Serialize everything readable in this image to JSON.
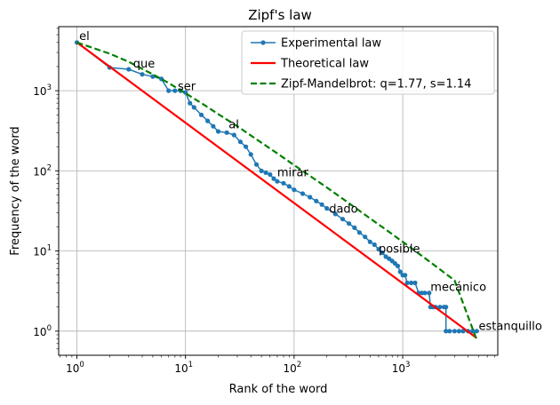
{
  "chart_data": {
    "type": "line",
    "title": "Zipf's law",
    "xlabel": "Rank of the word",
    "ylabel": "Frequency of the word",
    "xscale": "log",
    "yscale": "log",
    "xlim": [
      0.68,
      7500
    ],
    "ylim": [
      0.5,
      6300
    ],
    "x_ticks": [
      {
        "value": 1,
        "base": "10",
        "exp": "0"
      },
      {
        "value": 10,
        "base": "10",
        "exp": "1"
      },
      {
        "value": 100,
        "base": "10",
        "exp": "2"
      },
      {
        "value": 1000,
        "base": "10",
        "exp": "3"
      }
    ],
    "y_ticks": [
      {
        "value": 1,
        "base": "10",
        "exp": "0"
      },
      {
        "value": 10,
        "base": "10",
        "exp": "1"
      },
      {
        "value": 100,
        "base": "10",
        "exp": "2"
      },
      {
        "value": 1000,
        "base": "10",
        "exp": "3"
      }
    ],
    "grid": true,
    "legend_position": "top-right",
    "series": [
      {
        "name": "Experimental law",
        "color": "#1f77b4",
        "style": "solid-markers",
        "x": [
          1,
          2,
          3,
          4,
          5,
          6,
          7,
          8,
          9,
          10,
          11,
          12,
          14,
          16,
          18,
          20,
          24,
          28,
          32,
          36,
          40,
          45,
          50,
          55,
          60,
          65,
          70,
          80,
          90,
          100,
          120,
          140,
          160,
          180,
          200,
          240,
          280,
          320,
          360,
          400,
          450,
          500,
          550,
          600,
          650,
          700,
          750,
          800,
          850,
          900,
          950,
          1000,
          1050,
          1100,
          1200,
          1300,
          1400,
          1500,
          1600,
          1750,
          1800,
          1900,
          2000,
          2200,
          2400,
          2500,
          2500,
          2700,
          3000,
          3300,
          3600,
          4000,
          4400,
          4800
        ],
        "y": [
          4000,
          1950,
          1850,
          1600,
          1500,
          1400,
          1000,
          1000,
          1000,
          950,
          700,
          620,
          500,
          420,
          360,
          310,
          300,
          280,
          230,
          200,
          160,
          120,
          100,
          95,
          90,
          80,
          74,
          70,
          64,
          58,
          52,
          47,
          42,
          38,
          34,
          29,
          25,
          22,
          19.5,
          17,
          15,
          13,
          12,
          10.5,
          9.5,
          8.5,
          8,
          7.5,
          7,
          6.5,
          5.5,
          5,
          5,
          4,
          4,
          4,
          3,
          3,
          3,
          3,
          2,
          2,
          2,
          2,
          2,
          2,
          1,
          1,
          1,
          1,
          1,
          1,
          1,
          1
        ]
      },
      {
        "name": "Theoretical law",
        "color": "#ff0000",
        "style": "solid",
        "x": [
          1,
          4800
        ],
        "y": [
          4000,
          0.82
        ]
      },
      {
        "name": "Zipf-Mandelbrot: q=1.77, s=1.14",
        "color": "#008000",
        "style": "dashed",
        "x": [
          1,
          2,
          3,
          5,
          7,
          10,
          15,
          20,
          30,
          50,
          70,
          100,
          150,
          200,
          300,
          500,
          700,
          1000,
          1500,
          2000,
          3000,
          4800
        ],
        "y": [
          4000,
          2900,
          2300,
          1600,
          1250,
          930,
          660,
          510,
          360,
          225,
          165,
          118,
          81,
          62,
          42,
          25.5,
          18.5,
          13,
          8.7,
          6.5,
          4.3,
          0.78
        ]
      }
    ],
    "annotations": [
      {
        "text": "el",
        "x": 1.05,
        "y": 4300
      },
      {
        "text": "que",
        "x": 3.3,
        "y": 1950
      },
      {
        "text": "ser",
        "x": 8.5,
        "y": 1020
      },
      {
        "text": "al",
        "x": 25,
        "y": 340
      },
      {
        "text": "mirar",
        "x": 70,
        "y": 86
      },
      {
        "text": "dado",
        "x": 210,
        "y": 30
      },
      {
        "text": "posible",
        "x": 600,
        "y": 9.5
      },
      {
        "text": "mecánico",
        "x": 1800,
        "y": 3.2
      },
      {
        "text": "estanquillo",
        "x": 5000,
        "y": 1.03
      }
    ]
  }
}
